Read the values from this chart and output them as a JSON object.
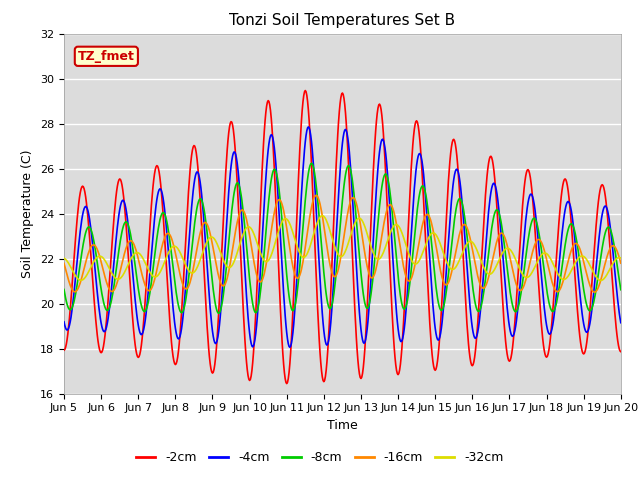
{
  "title": "Tonzi Soil Temperatures Set B",
  "xlabel": "Time",
  "ylabel": "Soil Temperature (C)",
  "ylim": [
    16,
    32
  ],
  "xlim": [
    0,
    360
  ],
  "bg_color": "#dcdcdc",
  "fig_color": "#ffffff",
  "annotation_text": "TZ_fmet",
  "annotation_color": "#cc0000",
  "annotation_bg": "#ffffcc",
  "series_colors": [
    "#ff0000",
    "#0000ff",
    "#00cc00",
    "#ff8800",
    "#dddd00"
  ],
  "series_labels": [
    "-2cm",
    "-4cm",
    "-8cm",
    "-16cm",
    "-32cm"
  ],
  "xtick_labels": [
    "Jun 5",
    "Jun 6",
    "Jun 7",
    "Jun 8",
    "Jun 9",
    "Jun 10",
    "Jun 11",
    "Jun 12",
    "Jun 13",
    "Jun 14",
    "Jun 15",
    "Jun 16",
    "Jun 17",
    "Jun 18",
    "Jun 19",
    "Jun 20"
  ],
  "xtick_positions": [
    0,
    24,
    48,
    72,
    96,
    120,
    144,
    168,
    192,
    216,
    240,
    264,
    288,
    312,
    336,
    360
  ],
  "n_points": 721,
  "line_width": 1.2,
  "legend_fontsize": 9,
  "title_fontsize": 11,
  "axis_fontsize": 9,
  "tick_fontsize": 8
}
